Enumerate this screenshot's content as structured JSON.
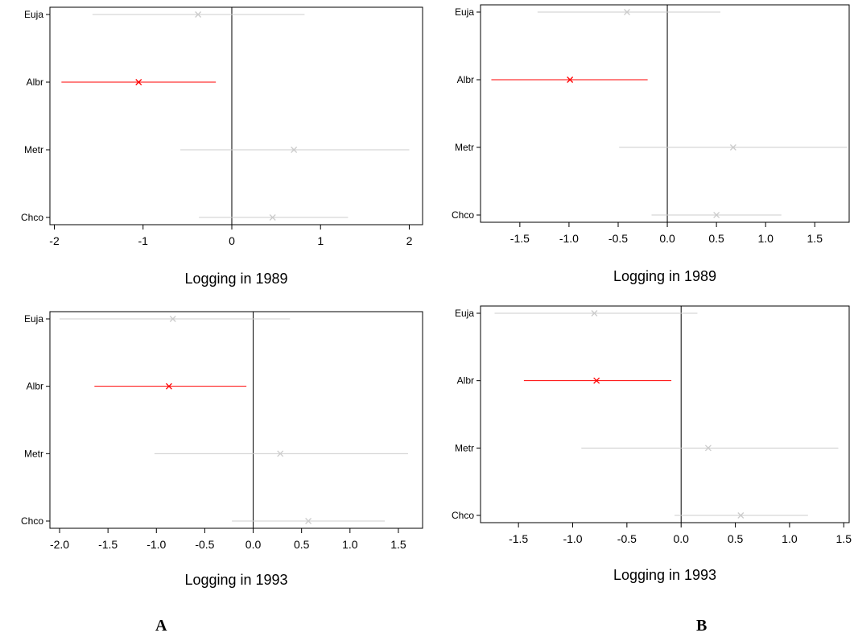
{
  "panel_labels": {
    "a": "A",
    "b": "B"
  },
  "chart_data": [
    {
      "type": "scatter",
      "title": "",
      "xlabel": "Logging in 1989",
      "ylabel": "",
      "categories": [
        "Euja",
        "Albr",
        "Metr",
        "Chco"
      ],
      "xlim": [
        -2.05,
        2.15
      ],
      "xticks": [
        -2,
        -1,
        0,
        1,
        2
      ],
      "xtick_labels": [
        "-2",
        "-1",
        "0",
        "1",
        "2"
      ],
      "grid": false,
      "reference_line": 0,
      "series": [
        {
          "values": [
            {
              "label": "Euja",
              "estimate": -0.38,
              "low": -1.57,
              "high": 0.82,
              "color": "#cccccc"
            },
            {
              "label": "Albr",
              "estimate": -1.05,
              "low": -1.92,
              "high": -0.18,
              "color": "#ff0000"
            },
            {
              "label": "Metr",
              "estimate": 0.7,
              "low": -0.58,
              "high": 2.0,
              "color": "#cccccc"
            },
            {
              "label": "Chco",
              "estimate": 0.46,
              "low": -0.37,
              "high": 1.31,
              "color": "#cccccc"
            }
          ]
        }
      ]
    },
    {
      "type": "scatter",
      "title": "",
      "xlabel": "Logging in 1989",
      "ylabel": "",
      "categories": [
        "Euja",
        "Albr",
        "Metr",
        "Chco"
      ],
      "xlim": [
        -1.9,
        1.85
      ],
      "xticks": [
        -1.5,
        -1.0,
        -0.5,
        0.0,
        0.5,
        1.0,
        1.5
      ],
      "xtick_labels": [
        "-1.5",
        "-1.0",
        "-0.5",
        "0.0",
        "0.5",
        "1.0",
        "1.5"
      ],
      "grid": false,
      "reference_line": 0,
      "series": [
        {
          "values": [
            {
              "label": "Euja",
              "estimate": -0.41,
              "low": -1.32,
              "high": 0.54,
              "color": "#cccccc"
            },
            {
              "label": "Albr",
              "estimate": -0.99,
              "low": -1.79,
              "high": -0.2,
              "color": "#ff0000"
            },
            {
              "label": "Metr",
              "estimate": 0.67,
              "low": -0.49,
              "high": 1.83,
              "color": "#cccccc"
            },
            {
              "label": "Chco",
              "estimate": 0.5,
              "low": -0.16,
              "high": 1.16,
              "color": "#cccccc"
            }
          ]
        }
      ]
    },
    {
      "type": "scatter",
      "title": "",
      "xlabel": "Logging in 1993",
      "ylabel": "",
      "categories": [
        "Euja",
        "Albr",
        "Metr",
        "Chco"
      ],
      "xlim": [
        -2.1,
        1.75
      ],
      "xticks": [
        -2.0,
        -1.5,
        -1.0,
        -0.5,
        0.0,
        0.5,
        1.0,
        1.5
      ],
      "xtick_labels": [
        "-2.0",
        "-1.5",
        "-1.0",
        "-0.5",
        "0.0",
        "0.5",
        "1.0",
        "1.5"
      ],
      "grid": false,
      "reference_line": 0,
      "series": [
        {
          "values": [
            {
              "label": "Euja",
              "estimate": -0.83,
              "low": -2.0,
              "high": 0.38,
              "color": "#cccccc"
            },
            {
              "label": "Albr",
              "estimate": -0.87,
              "low": -1.64,
              "high": -0.07,
              "color": "#ff0000"
            },
            {
              "label": "Metr",
              "estimate": 0.28,
              "low": -1.02,
              "high": 1.6,
              "color": "#cccccc"
            },
            {
              "label": "Chco",
              "estimate": 0.57,
              "low": -0.22,
              "high": 1.36,
              "color": "#cccccc"
            }
          ]
        }
      ]
    },
    {
      "type": "scatter",
      "title": "",
      "xlabel": "Logging in 1993",
      "ylabel": "",
      "categories": [
        "Euja",
        "Albr",
        "Metr",
        "Chco"
      ],
      "xlim": [
        -1.85,
        1.55
      ],
      "xticks": [
        -1.5,
        -1.0,
        -0.5,
        0.0,
        0.5,
        1.0,
        1.5
      ],
      "xtick_labels": [
        "-1.5",
        "-1.0",
        "-0.5",
        "0.0",
        "0.5",
        "1.0",
        "1.5"
      ],
      "grid": false,
      "reference_line": 0,
      "series": [
        {
          "values": [
            {
              "label": "Euja",
              "estimate": -0.8,
              "low": -1.72,
              "high": 0.15,
              "color": "#cccccc"
            },
            {
              "label": "Albr",
              "estimate": -0.78,
              "low": -1.45,
              "high": -0.09,
              "color": "#ff0000"
            },
            {
              "label": "Metr",
              "estimate": 0.25,
              "low": -0.92,
              "high": 1.45,
              "color": "#cccccc"
            },
            {
              "label": "Chco",
              "estimate": 0.55,
              "low": -0.06,
              "high": 1.17,
              "color": "#cccccc"
            }
          ]
        }
      ]
    }
  ]
}
